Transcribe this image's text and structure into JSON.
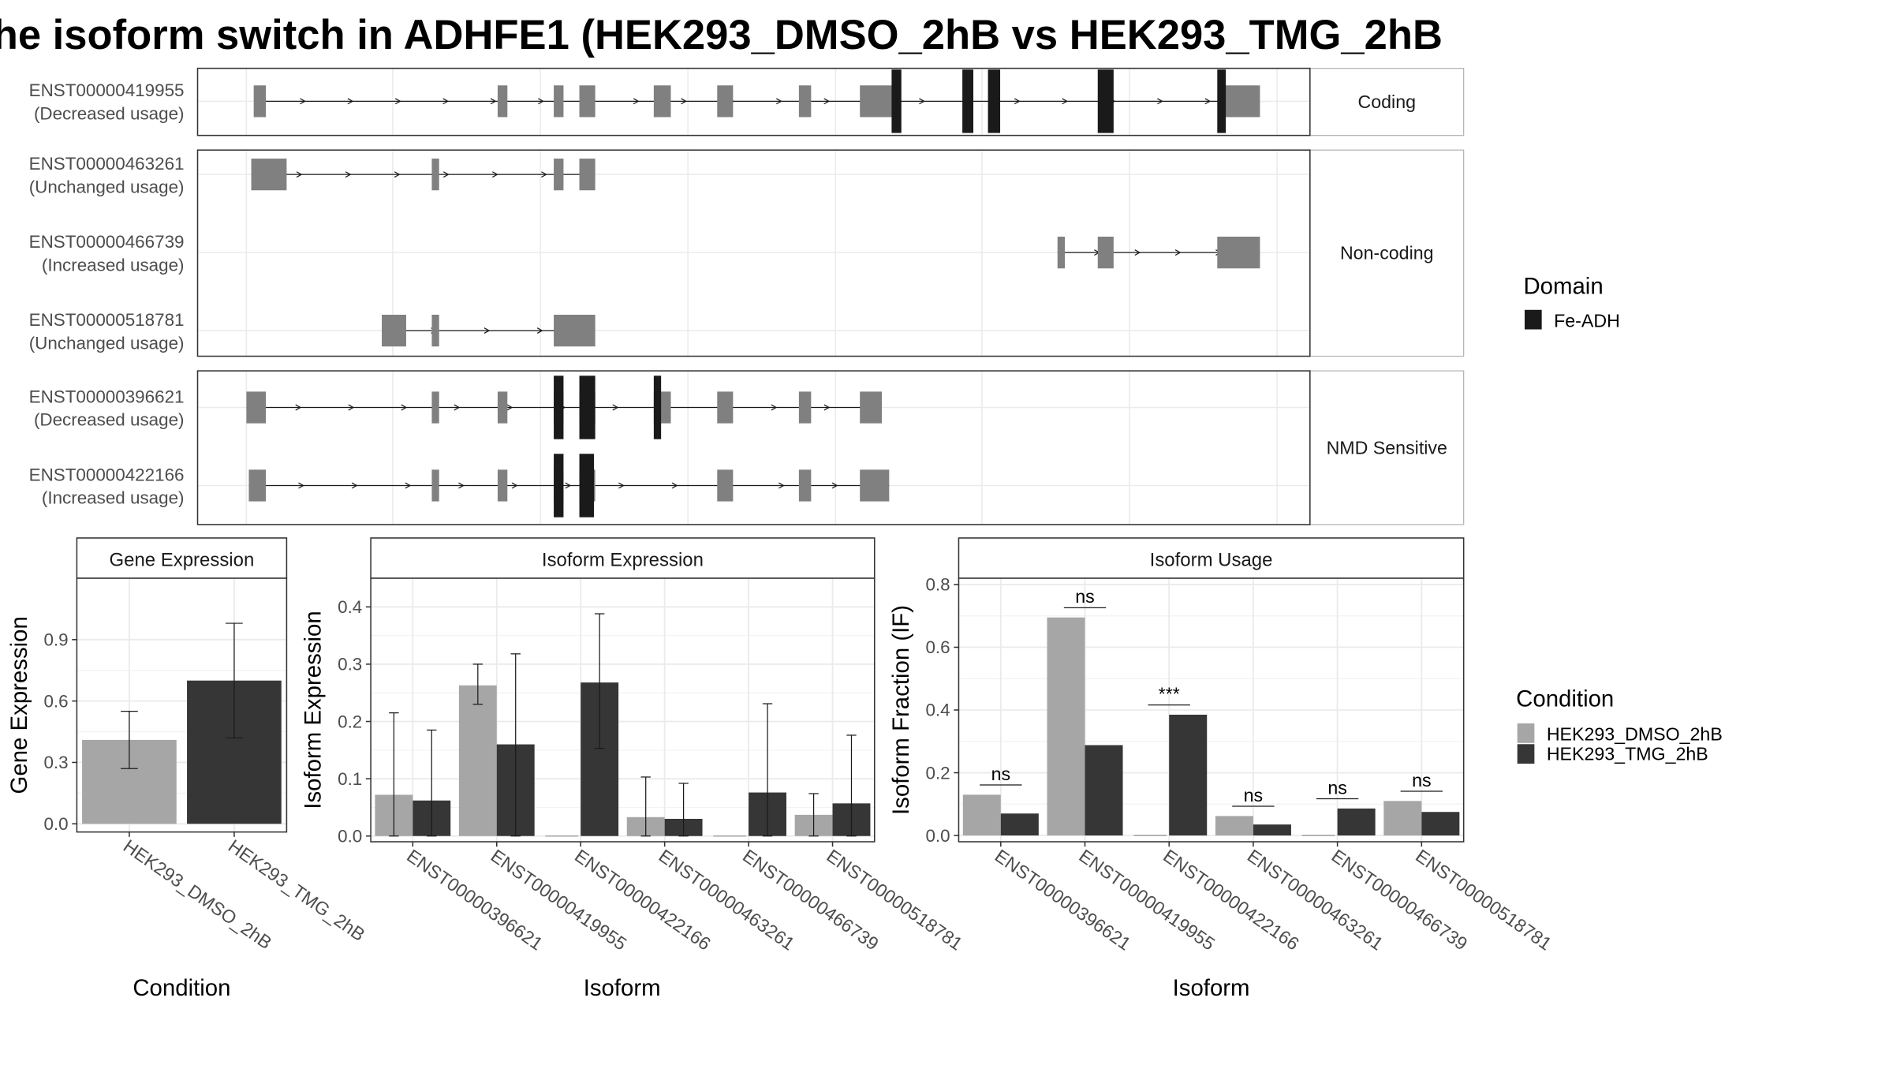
{
  "chart_data": {
    "title": "he isoform switch in ADHFE1 (HEK293_DMSO_2hB vs HEK293_TMG_2hB",
    "structure": {
      "type": "gene-structure",
      "groups": [
        {
          "label": "Coding",
          "isoforms": [
            {
              "id": "ENST00000419955",
              "usage": "(Decreased usage)",
              "line": [
                210,
                1030
              ],
              "arrows": 20,
              "exons": [
                [
                  208,
                  218
                ],
                [
                  408,
                  416
                ],
                [
                  454,
                  462
                ],
                [
                  475,
                  488
                ],
                [
                  536,
                  550
                ],
                [
                  588,
                  601
                ],
                [
                  655,
                  665
                ],
                [
                  705,
                  733
                ],
                [
                  1004,
                  1033
                ]
              ],
              "domains": [
                [
                  731,
                  739
                ],
                [
                  789,
                  798
                ],
                [
                  810,
                  820
                ],
                [
                  900,
                  913
                ],
                [
                  998,
                  1005
                ]
              ]
            }
          ]
        },
        {
          "label": "Non-coding",
          "isoforms": [
            {
              "id": "ENST00000463261",
              "usage": "(Unchanged usage)",
              "line": [
                206,
                487
              ],
              "arrows": 6,
              "exons": [
                [
                  206,
                  235
                ],
                [
                  354,
                  360
                ],
                [
                  454,
                  462
                ],
                [
                  475,
                  488
                ]
              ],
              "domains": []
            },
            {
              "id": "ENST00000466739",
              "usage": "(Increased usage)",
              "line": [
                867,
                1033
              ],
              "arrows": 4,
              "exons": [
                [
                  867,
                  873
                ],
                [
                  900,
                  913
                ],
                [
                  998,
                  1033
                ]
              ],
              "domains": []
            },
            {
              "id": "ENST00000518781",
              "usage": "(Unchanged usage)",
              "line": [
                313,
                487
              ],
              "arrows": 3,
              "exons": [
                [
                  313,
                  333
                ],
                [
                  354,
                  360
                ],
                [
                  454,
                  488
                ]
              ],
              "domains": []
            }
          ]
        },
        {
          "label": "NMD Sensitive",
          "isoforms": [
            {
              "id": "ENST00000396621",
              "usage": "(Decreased usage)",
              "line": [
                202,
                722
              ],
              "arrows": 11,
              "exons": [
                [
                  202,
                  218
                ],
                [
                  354,
                  360
                ],
                [
                  408,
                  416
                ],
                [
                  454,
                  462
                ],
                [
                  475,
                  488
                ],
                [
                  536,
                  550
                ],
                [
                  588,
                  601
                ],
                [
                  655,
                  665
                ],
                [
                  705,
                  723
                ]
              ],
              "domains": [
                [
                  454,
                  462
                ],
                [
                  475,
                  488
                ],
                [
                  536,
                  542
                ]
              ]
            },
            {
              "id": "ENST00000422166",
              "usage": "(Increased usage)",
              "line": [
                204,
                729
              ],
              "arrows": 11,
              "exons": [
                [
                  204,
                  218
                ],
                [
                  354,
                  360
                ],
                [
                  408,
                  416
                ],
                [
                  454,
                  462
                ],
                [
                  475,
                  488
                ],
                [
                  588,
                  601
                ],
                [
                  655,
                  665
                ],
                [
                  705,
                  729
                ]
              ],
              "domains": [
                [
                  454,
                  462
                ],
                [
                  475,
                  487
                ]
              ]
            }
          ]
        }
      ]
    },
    "domain_legend": {
      "title": "Domain",
      "items": [
        "Fe-ADH"
      ]
    },
    "condition_legend": {
      "title": "Condition",
      "items": [
        "HEK293_DMSO_2hB",
        "HEK293_TMG_2hB"
      ]
    },
    "colors": {
      "DMSO": "#a6a6a6",
      "TMG": "#363636",
      "exon": "#808080",
      "domain": "#1a1a1a",
      "strip": "#ffffff",
      "grid": "#ebebeb"
    },
    "panels": [
      {
        "name": "gene-expression",
        "type": "bar",
        "strip": "Gene Expression",
        "xlabel": "Condition",
        "ylabel": "Gene Expression",
        "categories": [
          "HEK293_DMSO_2hB",
          "HEK293_TMG_2hB"
        ],
        "ylim": [
          -0.04,
          1.2
        ],
        "yticks": [
          0.0,
          0.3,
          0.6,
          0.9
        ],
        "ytick_labels": [
          "0.0",
          "0.3",
          "0.6",
          "0.9"
        ],
        "bars": [
          {
            "cat": 0,
            "series": "DMSO",
            "value": 0.41,
            "err": [
              0.27,
              0.55
            ]
          },
          {
            "cat": 1,
            "series": "TMG",
            "value": 0.7,
            "err": [
              0.42,
              0.98
            ]
          }
        ]
      },
      {
        "name": "isoform-expression",
        "type": "bar",
        "strip": "Isoform Expression",
        "xlabel": "Isoform",
        "ylabel": "Isoform Expression",
        "categories": [
          "ENST00000396621",
          "ENST00000419955",
          "ENST00000422166",
          "ENST00000463261",
          "ENST00000466739",
          "ENST00000518781"
        ],
        "ylim": [
          -0.01,
          0.45
        ],
        "yticks": [
          0.0,
          0.1,
          0.2,
          0.3,
          0.4
        ],
        "ytick_labels": [
          "0.0",
          "0.1",
          "0.2",
          "0.3",
          "0.4"
        ],
        "series": [
          {
            "name": "HEK293_DMSO_2hB",
            "key": "DMSO",
            "values": [
              0.072,
              0.263,
              0.0,
              0.033,
              0.0,
              0.037
            ],
            "err": [
              [
                0.0,
                0.215
              ],
              [
                0.23,
                0.3
              ],
              null,
              [
                0.0,
                0.103
              ],
              null,
              [
                0.0,
                0.074
              ]
            ]
          },
          {
            "name": "HEK293_TMG_2hB",
            "key": "TMG",
            "values": [
              0.062,
              0.16,
              0.268,
              0.03,
              0.076,
              0.057
            ],
            "err": [
              [
                0.0,
                0.185
              ],
              [
                0.0,
                0.318
              ],
              [
                0.153,
                0.388
              ],
              [
                0.0,
                0.092
              ],
              [
                0.0,
                0.231
              ],
              [
                0.0,
                0.176
              ]
            ]
          }
        ]
      },
      {
        "name": "isoform-usage",
        "type": "bar",
        "strip": "Isoform Usage",
        "xlabel": "Isoform",
        "ylabel": "Isoform Fraction (IF)",
        "categories": [
          "ENST00000396621",
          "ENST00000419955",
          "ENST00000422166",
          "ENST00000463261",
          "ENST00000466739",
          "ENST00000518781"
        ],
        "ylim": [
          -0.02,
          0.82
        ],
        "yticks": [
          0.0,
          0.2,
          0.4,
          0.6,
          0.8
        ],
        "ytick_labels": [
          "0.0",
          "0.2",
          "0.4",
          "0.6",
          "0.8"
        ],
        "series": [
          {
            "name": "HEK293_DMSO_2hB",
            "key": "DMSO",
            "values": [
              0.13,
              0.695,
              0.0,
              0.062,
              0.0,
              0.11
            ]
          },
          {
            "name": "HEK293_TMG_2hB",
            "key": "TMG",
            "values": [
              0.07,
              0.288,
              0.385,
              0.035,
              0.086,
              0.075
            ]
          }
        ],
        "significance": [
          "ns",
          "ns",
          "***",
          "ns",
          "ns",
          "ns"
        ]
      }
    ]
  }
}
